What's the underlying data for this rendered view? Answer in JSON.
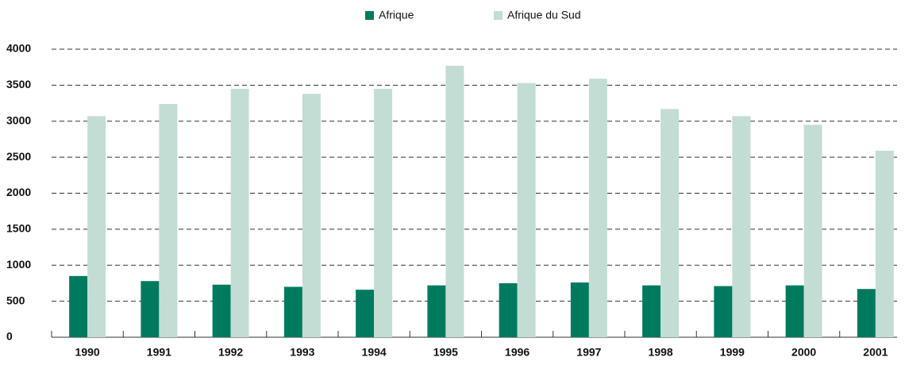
{
  "chart_data": {
    "type": "bar",
    "categories": [
      "1990",
      "1991",
      "1992",
      "1993",
      "1994",
      "1995",
      "1996",
      "1997",
      "1998",
      "1999",
      "2000",
      "2001"
    ],
    "series": [
      {
        "name": "Afrique",
        "color": "#007a5e",
        "values": [
          850,
          780,
          730,
          700,
          660,
          720,
          750,
          760,
          720,
          710,
          720,
          670
        ]
      },
      {
        "name": "Afrique du Sud",
        "color": "#c3ddd4",
        "values": [
          3070,
          3240,
          3450,
          3380,
          3450,
          3770,
          3530,
          3590,
          3170,
          3070,
          2950,
          2590
        ]
      }
    ],
    "ylim": [
      0,
      4000
    ],
    "yticks": [
      0,
      500,
      1000,
      1500,
      2000,
      2500,
      3000,
      3500,
      4000
    ],
    "grid": true,
    "legend": "top"
  }
}
